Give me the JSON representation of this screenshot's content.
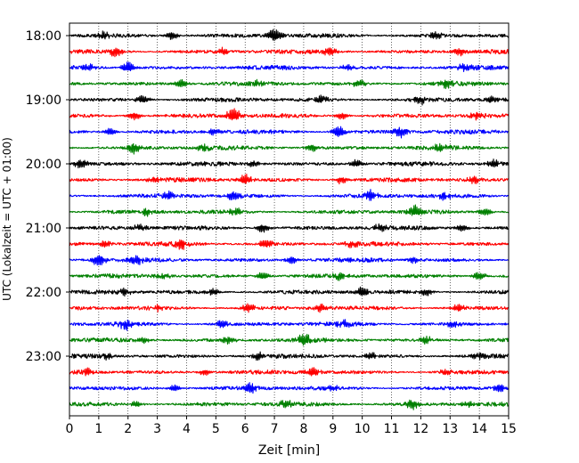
{
  "chart_data": {
    "type": "line",
    "title": "",
    "xlabel": "Zeit  [min]",
    "ylabel": "UTC (Lokalzeit = UTC + 01:00)",
    "xlim": [
      0,
      15
    ],
    "x_ticks": [
      "0",
      "1",
      "2",
      "3",
      "4",
      "5",
      "6",
      "7",
      "8",
      "9",
      "10",
      "11",
      "12",
      "13",
      "14",
      "15"
    ],
    "y_ticks": [
      "18:00",
      "19:00",
      "20:00",
      "21:00",
      "22:00",
      "23:00"
    ],
    "grid": {
      "x": "dotted-vertical",
      "y": "none"
    },
    "trace_colors_cycle": [
      "#000000",
      "#ff0000",
      "#0000ff",
      "#008000"
    ],
    "traces": [
      {
        "row": 0,
        "time": "18:00",
        "color": "#000000",
        "events": [
          [
            7.0,
            2.2
          ],
          [
            3.5,
            1.2
          ],
          [
            1.2,
            1.0
          ],
          [
            12.5,
            1.0
          ]
        ]
      },
      {
        "row": 1,
        "time": "18:15",
        "color": "#ff0000",
        "events": [
          [
            1.6,
            1.4
          ],
          [
            8.9,
            1.3
          ],
          [
            13.3,
            1.2
          ],
          [
            5.2,
            1.0
          ]
        ]
      },
      {
        "row": 2,
        "time": "18:30",
        "color": "#0000ff",
        "events": [
          [
            2.0,
            1.8
          ],
          [
            0.7,
            1.1
          ],
          [
            9.5,
            1.0
          ],
          [
            13.5,
            1.2
          ]
        ]
      },
      {
        "row": 3,
        "time": "18:45",
        "color": "#008000",
        "events": [
          [
            3.8,
            1.4
          ],
          [
            12.9,
            1.4
          ],
          [
            6.5,
            1.0
          ],
          [
            9.9,
            1.1
          ]
        ]
      },
      {
        "row": 4,
        "time": "19:00",
        "color": "#000000",
        "events": [
          [
            2.5,
            1.3
          ],
          [
            8.6,
            1.1
          ],
          [
            12.0,
            1.2
          ],
          [
            14.4,
            1.0
          ]
        ]
      },
      {
        "row": 5,
        "time": "19:15",
        "color": "#ff0000",
        "events": [
          [
            5.6,
            2.4
          ],
          [
            2.2,
            1.3
          ],
          [
            13.9,
            1.2
          ],
          [
            9.3,
            1.0
          ]
        ]
      },
      {
        "row": 6,
        "time": "19:30",
        "color": "#0000ff",
        "events": [
          [
            9.2,
            2.0
          ],
          [
            11.3,
            1.7
          ],
          [
            4.9,
            1.1
          ],
          [
            1.4,
            1.0
          ]
        ]
      },
      {
        "row": 7,
        "time": "19:45",
        "color": "#008000",
        "events": [
          [
            2.2,
            1.5
          ],
          [
            4.6,
            1.2
          ],
          [
            12.7,
            1.0
          ],
          [
            8.3,
            1.0
          ]
        ]
      },
      {
        "row": 8,
        "time": "20:00",
        "color": "#000000",
        "events": [
          [
            0.4,
            1.5
          ],
          [
            9.8,
            1.2
          ],
          [
            14.5,
            1.3
          ],
          [
            6.3,
            1.0
          ]
        ]
      },
      {
        "row": 9,
        "time": "20:15",
        "color": "#ff0000",
        "events": [
          [
            6.0,
            1.6
          ],
          [
            9.3,
            1.2
          ],
          [
            2.9,
            1.0
          ],
          [
            13.8,
            1.2
          ]
        ]
      },
      {
        "row": 10,
        "time": "20:30",
        "color": "#0000ff",
        "events": [
          [
            5.6,
            1.6
          ],
          [
            10.3,
            1.5
          ],
          [
            3.4,
            1.1
          ],
          [
            12.8,
            1.0
          ]
        ]
      },
      {
        "row": 11,
        "time": "20:45",
        "color": "#008000",
        "events": [
          [
            11.8,
            1.8
          ],
          [
            5.7,
            1.1
          ],
          [
            14.2,
            1.1
          ],
          [
            2.6,
            1.0
          ]
        ]
      },
      {
        "row": 12,
        "time": "21:00",
        "color": "#000000",
        "events": [
          [
            6.6,
            1.4
          ],
          [
            2.4,
            1.0
          ],
          [
            10.6,
            1.2
          ],
          [
            13.4,
            1.0
          ]
        ]
      },
      {
        "row": 13,
        "time": "21:15",
        "color": "#ff0000",
        "events": [
          [
            3.8,
            1.6
          ],
          [
            6.7,
            1.4
          ],
          [
            9.6,
            1.1
          ],
          [
            1.2,
            1.0
          ]
        ]
      },
      {
        "row": 14,
        "time": "21:30",
        "color": "#0000ff",
        "events": [
          [
            1.0,
            1.7
          ],
          [
            2.3,
            1.4
          ],
          [
            7.6,
            1.2
          ],
          [
            11.8,
            1.0
          ]
        ]
      },
      {
        "row": 15,
        "time": "21:45",
        "color": "#008000",
        "events": [
          [
            6.6,
            1.2
          ],
          [
            14.0,
            1.3
          ],
          [
            3.2,
            1.0
          ],
          [
            9.2,
            1.0
          ]
        ]
      },
      {
        "row": 16,
        "time": "22:00",
        "color": "#000000",
        "events": [
          [
            10.0,
            1.5
          ],
          [
            4.9,
            1.1
          ],
          [
            12.2,
            1.0
          ],
          [
            1.9,
            1.0
          ]
        ]
      },
      {
        "row": 17,
        "time": "22:15",
        "color": "#ff0000",
        "events": [
          [
            6.1,
            1.3
          ],
          [
            13.3,
            1.2
          ],
          [
            3.0,
            1.0
          ],
          [
            8.6,
            1.1
          ]
        ]
      },
      {
        "row": 18,
        "time": "22:30",
        "color": "#0000ff",
        "events": [
          [
            1.9,
            1.5
          ],
          [
            5.2,
            1.2
          ],
          [
            9.4,
            1.1
          ],
          [
            13.1,
            1.0
          ]
        ]
      },
      {
        "row": 19,
        "time": "22:45",
        "color": "#008000",
        "events": [
          [
            8.0,
            2.0
          ],
          [
            5.4,
            1.3
          ],
          [
            12.2,
            1.1
          ],
          [
            2.5,
            1.0
          ]
        ]
      },
      {
        "row": 20,
        "time": "23:00",
        "color": "#000000",
        "events": [
          [
            6.5,
            1.3
          ],
          [
            1.3,
            1.0
          ],
          [
            10.3,
            1.2
          ],
          [
            14.0,
            1.1
          ]
        ]
      },
      {
        "row": 21,
        "time": "23:15",
        "color": "#ff0000",
        "events": [
          [
            8.3,
            1.6
          ],
          [
            0.6,
            1.1
          ],
          [
            12.9,
            1.1
          ],
          [
            4.6,
            1.0
          ]
        ]
      },
      {
        "row": 22,
        "time": "23:30",
        "color": "#0000ff",
        "events": [
          [
            6.2,
            1.6
          ],
          [
            9.0,
            1.2
          ],
          [
            3.6,
            1.0
          ],
          [
            14.7,
            1.0
          ]
        ]
      },
      {
        "row": 23,
        "time": "23:45",
        "color": "#008000",
        "events": [
          [
            11.7,
            1.7
          ],
          [
            2.3,
            1.0
          ],
          [
            7.4,
            1.1
          ],
          [
            13.6,
            1.0
          ]
        ]
      }
    ]
  }
}
